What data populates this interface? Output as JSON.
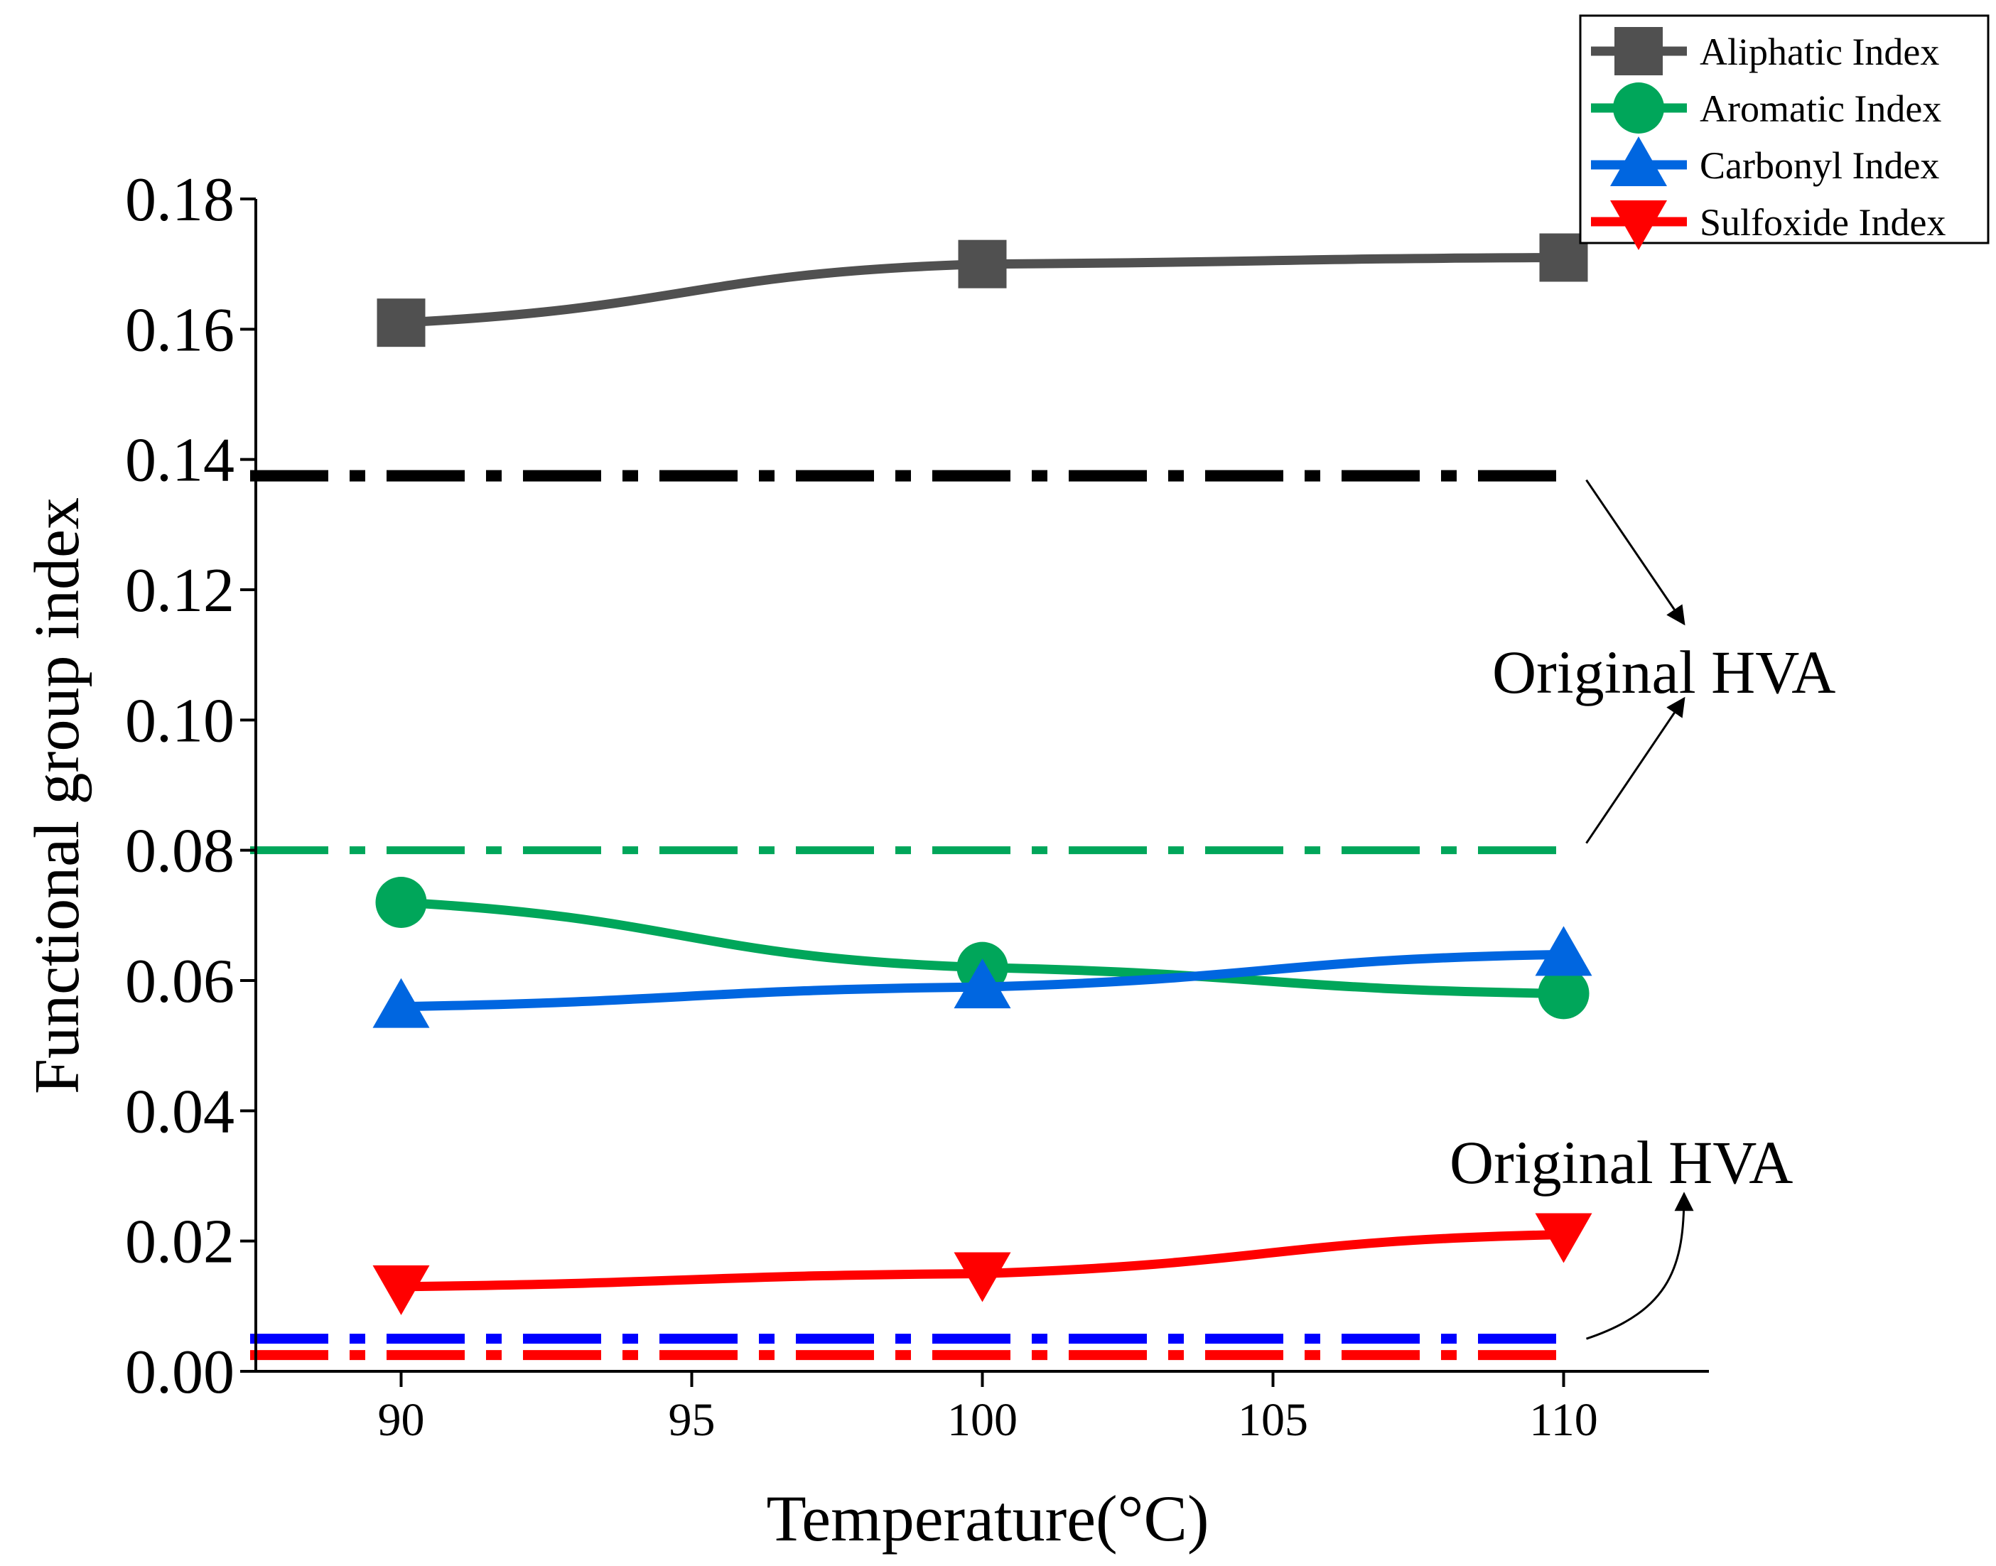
{
  "chart_data": {
    "type": "line",
    "title": "",
    "xlabel": "Temperature(°C)",
    "ylabel": "Functional group index",
    "xlim": [
      87.5,
      112.5
    ],
    "ylim": [
      0.0,
      0.18
    ],
    "grid": false,
    "x_ticks": [
      "90",
      "95",
      "100",
      "105",
      "110"
    ],
    "y_ticks": [
      "0.00",
      "0.02",
      "0.04",
      "0.06",
      "0.08",
      "0.10",
      "0.12",
      "0.14",
      "0.16",
      "0.18"
    ],
    "x": [
      90,
      100,
      110
    ],
    "series": [
      {
        "name": "Aliphatic Index",
        "values": [
          0.161,
          0.17,
          0.171
        ],
        "color": "#505050",
        "marker": "square"
      },
      {
        "name": "Aromatic Index",
        "values": [
          0.072,
          0.062,
          0.058
        ],
        "color": "#00A65A",
        "marker": "circle"
      },
      {
        "name": "Carbonyl Index",
        "values": [
          0.056,
          0.059,
          0.064
        ],
        "color": "#0066E0",
        "marker": "triangle-up"
      },
      {
        "name": "Sulfoxide Index",
        "values": [
          0.013,
          0.015,
          0.021
        ],
        "color": "#FF0000",
        "marker": "triangle-down"
      }
    ],
    "reference_lines": [
      {
        "name": "Original HVA aliphatic",
        "value": 0.1375,
        "color": "#000000",
        "style": "dash-dot"
      },
      {
        "name": "Original HVA aromatic",
        "value": 0.08,
        "color": "#00A65A",
        "style": "dash-dot"
      },
      {
        "name": "Original HVA carbonyl",
        "value": 0.005,
        "color": "#0000FF",
        "style": "dash-dot"
      },
      {
        "name": "Original HVA sulfoxide",
        "value": 0.0025,
        "color": "#FF0000",
        "style": "dash-dot"
      }
    ],
    "annotations": [
      {
        "text": "Original HVA"
      },
      {
        "text": "Original HVA"
      }
    ],
    "legend_position": "top-right"
  }
}
